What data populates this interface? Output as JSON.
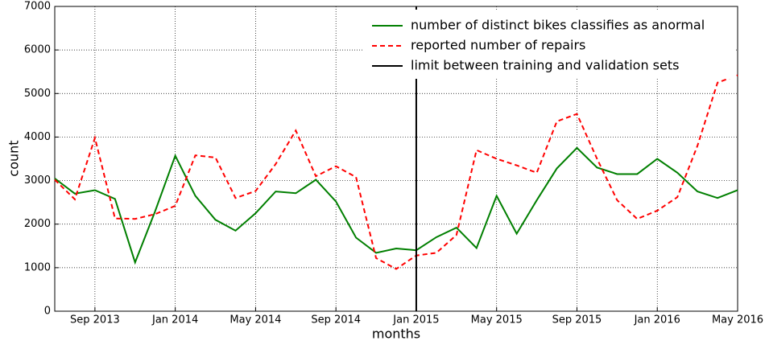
{
  "chart_data": {
    "type": "line",
    "xlabel": "months",
    "ylabel": "count",
    "categories": [
      null,
      null,
      "Sep 2013",
      null,
      null,
      null,
      "Jan 2014",
      null,
      null,
      null,
      "May 2014",
      null,
      null,
      null,
      "Sep 2014",
      null,
      null,
      null,
      "Jan 2015",
      null,
      null,
      null,
      "May 2015",
      null,
      null,
      null,
      "Sep 2015",
      null,
      null,
      null,
      "Jan 2016",
      null,
      null,
      null,
      "May 2016"
    ],
    "series": [
      {
        "name": "number of distinct bikes classifies as anormal",
        "color": "#007f00",
        "linestyle": "solid",
        "values": [
          3050,
          2700,
          2780,
          2580,
          1120,
          2300,
          3570,
          2650,
          2100,
          1850,
          2250,
          2750,
          2710,
          3020,
          2520,
          1690,
          1340,
          1440,
          1400,
          1700,
          1920,
          1450,
          2650,
          1780,
          2550,
          3280,
          3750,
          3300,
          3150,
          3150,
          3500,
          3180,
          2750,
          2600,
          2780
        ]
      },
      {
        "name": "reported number of repairs",
        "color": "#ff0000",
        "linestyle": "dashed",
        "values": [
          3020,
          2570,
          3980,
          2130,
          2120,
          2230,
          2420,
          3580,
          3530,
          2600,
          2760,
          3380,
          4150,
          3100,
          3330,
          3080,
          1220,
          970,
          1280,
          1340,
          1750,
          3700,
          3500,
          3350,
          3180,
          4360,
          4530,
          3500,
          2550,
          2120,
          2310,
          2620,
          3800,
          5250,
          5420
        ]
      },
      {
        "name": "limit between training and validation sets",
        "color": "#000000",
        "linestyle": "vline",
        "at": "Jan 2015"
      }
    ],
    "ylim": [
      0,
      7000
    ],
    "yticks": [
      0,
      1000,
      2000,
      3000,
      4000,
      5000,
      6000,
      7000
    ],
    "grid": true,
    "legend": "upper right"
  }
}
